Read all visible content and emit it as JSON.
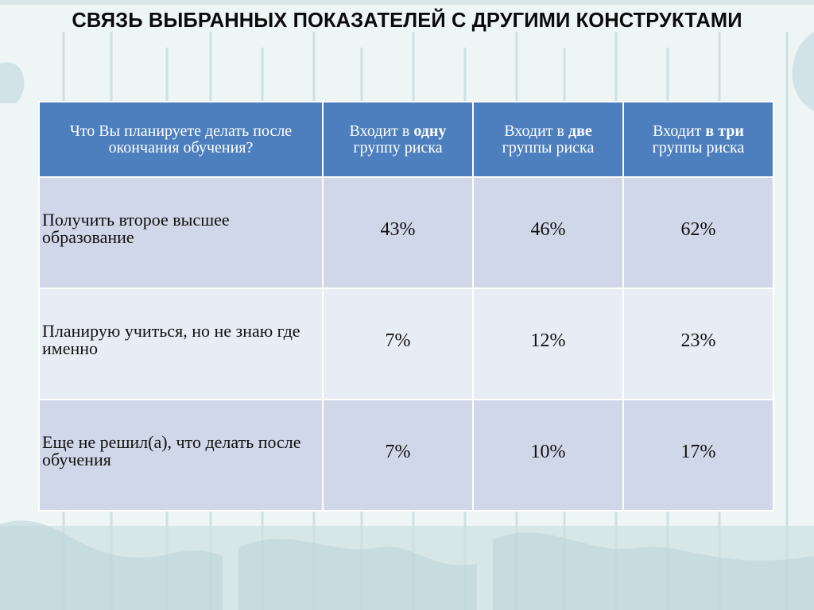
{
  "title": "СВЯЗЬ ВЫБРАННЫХ ПОКАЗАТЕЛЕЙ С ДРУГИМИ КОНСТРУКТАМИ",
  "table": {
    "header": {
      "question": "Что Вы планируете делать после окончания обучения?",
      "col1_prefix": "Входит в ",
      "col1_bold": "одну",
      "col1_suffix": "группу риска",
      "col2_prefix": "Входит в ",
      "col2_bold": "две",
      "col2_suffix": "группы риска",
      "col3_prefix": "Входит ",
      "col3_bold": "в три",
      "col3_suffix": "группы риска"
    },
    "rows": [
      {
        "label": "Получить второе высшее образование",
        "values": [
          "43%",
          "46%",
          "62%"
        ]
      },
      {
        "label": "Планирую учиться, но не знаю где именно",
        "values": [
          "7%",
          "12%",
          "23%"
        ]
      },
      {
        "label": "Еще не решил(а), что делать после обучения",
        "values": [
          "7%",
          "10%",
          "17%"
        ]
      }
    ]
  },
  "colors": {
    "header_bg": "#4d7fbe",
    "row_odd_bg": "#d0d7e8",
    "row_even_bg": "#e8ecf4",
    "background": "#eef5f5"
  }
}
